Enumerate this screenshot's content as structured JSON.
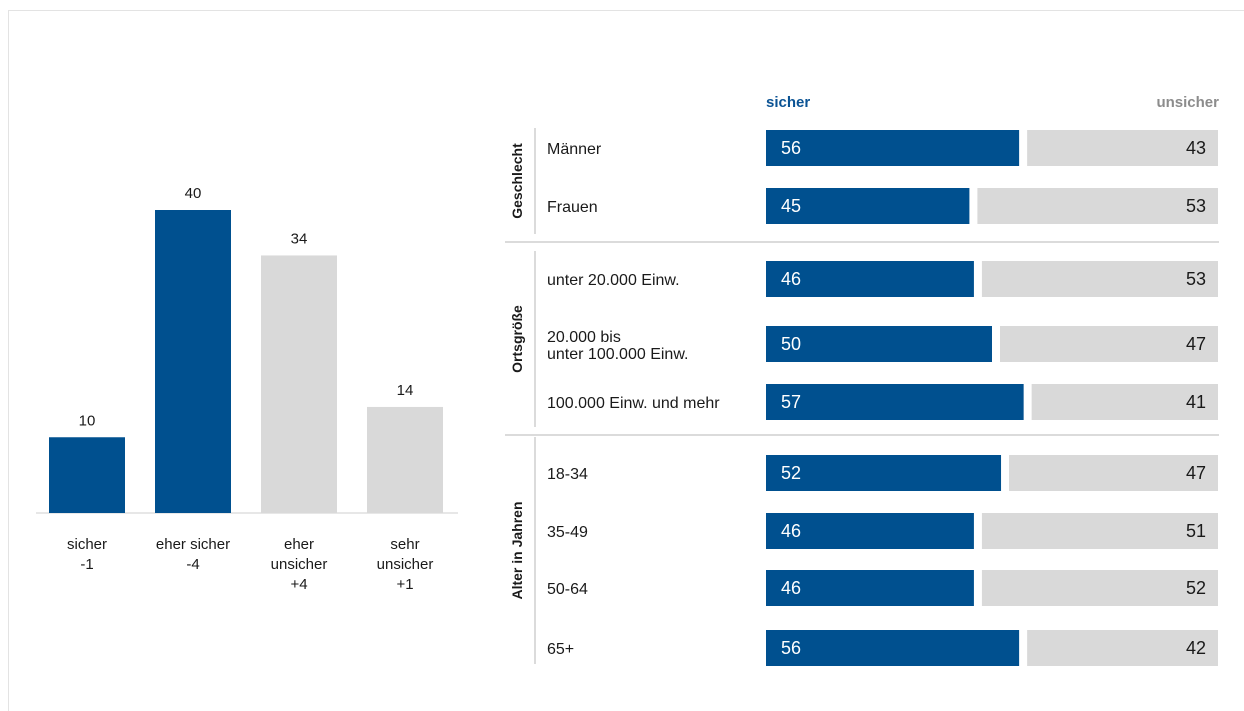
{
  "colors": {
    "sicher": "#00508f",
    "unsicher": "#d9d9d9",
    "rule": "#cfcfcf"
  },
  "chart_data": [
    {
      "type": "bar",
      "categories": [
        [
          "sicher",
          "-1"
        ],
        [
          "eher sicher",
          "-4"
        ],
        [
          "eher",
          "unsicher",
          "+4"
        ],
        [
          "sehr",
          "unsicher",
          "+1"
        ]
      ],
      "values": [
        10,
        40,
        34,
        14
      ],
      "colors": [
        "sicher",
        "sicher",
        "unsicher",
        "unsicher"
      ]
    },
    {
      "type": "bar",
      "orientation": "horizontal",
      "stacked": true,
      "header_left": "sicher",
      "header_right": "unsicher",
      "xlim": [
        0,
        100
      ],
      "groups": [
        {
          "name": "Geschlecht",
          "rows": [
            {
              "label": [
                "Männer"
              ],
              "sicher": 56,
              "unsicher": 43
            },
            {
              "label": [
                "Frauen"
              ],
              "sicher": 45,
              "unsicher": 53
            }
          ]
        },
        {
          "name": "Ortsgröße",
          "rows": [
            {
              "label": [
                "unter 20.000 Einw."
              ],
              "sicher": 46,
              "unsicher": 53
            },
            {
              "label": [
                "20.000 bis",
                "unter 100.000 Einw."
              ],
              "sicher": 50,
              "unsicher": 47
            },
            {
              "label": [
                "100.000 Einw. und mehr"
              ],
              "sicher": 57,
              "unsicher": 41
            }
          ]
        },
        {
          "name": "Alter in Jahren",
          "rows": [
            {
              "label": [
                "18-34"
              ],
              "sicher": 52,
              "unsicher": 47
            },
            {
              "label": [
                "35-49"
              ],
              "sicher": 46,
              "unsicher": 51
            },
            {
              "label": [
                "50-64"
              ],
              "sicher": 46,
              "unsicher": 52
            },
            {
              "label": [
                "65+"
              ],
              "sicher": 56,
              "unsicher": 42
            }
          ]
        }
      ]
    }
  ]
}
